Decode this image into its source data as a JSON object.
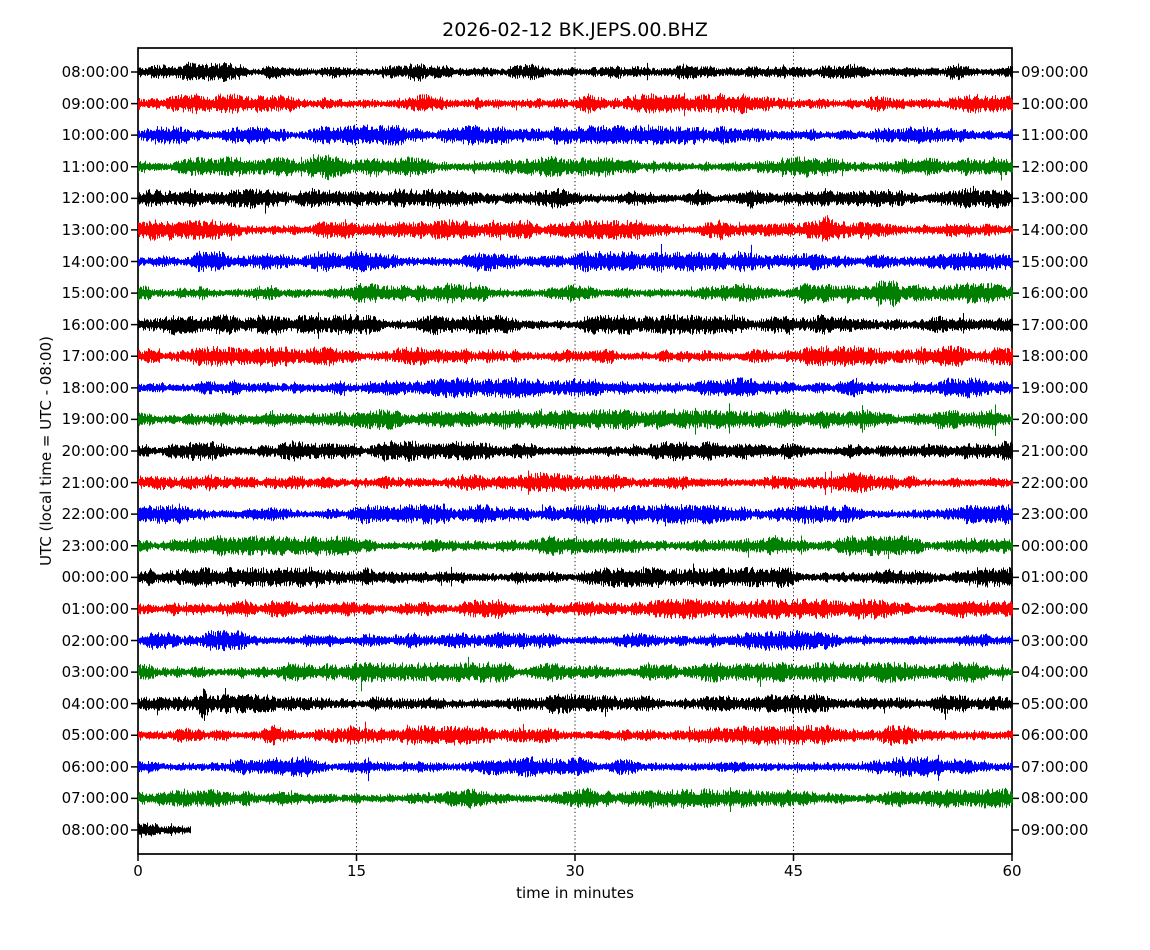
{
  "title": "2026-02-12 BK.JEPS.00.BHZ",
  "xlabel": "time in minutes",
  "ylabel": "UTC (local time = UTC - 08:00)",
  "chart_data": {
    "type": "line",
    "subtype": "seismogram-dayplot",
    "date": "2026-02-12",
    "channel": "BK.JEPS.00.BHZ",
    "x_range_minutes": [
      0,
      60
    ],
    "x_ticks": [
      0,
      15,
      30,
      45,
      60
    ],
    "gridlines_minutes": [
      15,
      30,
      45
    ],
    "grid_style": "dotted-vertical",
    "row_interval_minutes": 60,
    "trace_color_cycle": [
      "#000000",
      "#ff0000",
      "#0000ff",
      "#008000"
    ],
    "frame_color": "#000000",
    "background_color": "#ffffff",
    "rows": [
      {
        "left_label": "08:00:00",
        "right_label": "09:00:00",
        "color": "#000000",
        "duration_min": 60
      },
      {
        "left_label": "09:00:00",
        "right_label": "10:00:00",
        "color": "#ff0000",
        "duration_min": 60
      },
      {
        "left_label": "10:00:00",
        "right_label": "11:00:00",
        "color": "#0000ff",
        "duration_min": 60
      },
      {
        "left_label": "11:00:00",
        "right_label": "12:00:00",
        "color": "#008000",
        "duration_min": 60
      },
      {
        "left_label": "12:00:00",
        "right_label": "13:00:00",
        "color": "#000000",
        "duration_min": 60
      },
      {
        "left_label": "13:00:00",
        "right_label": "14:00:00",
        "color": "#ff0000",
        "duration_min": 60
      },
      {
        "left_label": "14:00:00",
        "right_label": "15:00:00",
        "color": "#0000ff",
        "duration_min": 60
      },
      {
        "left_label": "15:00:00",
        "right_label": "16:00:00",
        "color": "#008000",
        "duration_min": 60
      },
      {
        "left_label": "16:00:00",
        "right_label": "17:00:00",
        "color": "#000000",
        "duration_min": 60
      },
      {
        "left_label": "17:00:00",
        "right_label": "18:00:00",
        "color": "#ff0000",
        "duration_min": 60
      },
      {
        "left_label": "18:00:00",
        "right_label": "19:00:00",
        "color": "#0000ff",
        "duration_min": 60
      },
      {
        "left_label": "19:00:00",
        "right_label": "20:00:00",
        "color": "#008000",
        "duration_min": 60
      },
      {
        "left_label": "20:00:00",
        "right_label": "21:00:00",
        "color": "#000000",
        "duration_min": 60
      },
      {
        "left_label": "21:00:00",
        "right_label": "22:00:00",
        "color": "#ff0000",
        "duration_min": 60
      },
      {
        "left_label": "22:00:00",
        "right_label": "23:00:00",
        "color": "#0000ff",
        "duration_min": 60
      },
      {
        "left_label": "23:00:00",
        "right_label": "00:00:00",
        "color": "#008000",
        "duration_min": 60
      },
      {
        "left_label": "00:00:00",
        "right_label": "01:00:00",
        "color": "#000000",
        "duration_min": 60
      },
      {
        "left_label": "01:00:00",
        "right_label": "02:00:00",
        "color": "#ff0000",
        "duration_min": 60
      },
      {
        "left_label": "02:00:00",
        "right_label": "03:00:00",
        "color": "#0000ff",
        "duration_min": 60
      },
      {
        "left_label": "03:00:00",
        "right_label": "04:00:00",
        "color": "#008000",
        "duration_min": 60
      },
      {
        "left_label": "04:00:00",
        "right_label": "05:00:00",
        "color": "#000000",
        "duration_min": 60
      },
      {
        "left_label": "05:00:00",
        "right_label": "06:00:00",
        "color": "#ff0000",
        "duration_min": 60
      },
      {
        "left_label": "06:00:00",
        "right_label": "07:00:00",
        "color": "#0000ff",
        "duration_min": 60
      },
      {
        "left_label": "07:00:00",
        "right_label": "08:00:00",
        "color": "#008000",
        "duration_min": 60
      },
      {
        "left_label": "08:00:00",
        "right_label": "09:00:00",
        "color": "#000000",
        "duration_min": 3.6
      }
    ],
    "bursts": [
      {
        "row": 3,
        "minute": 12.8,
        "strength": 1.7,
        "width": 0.8
      },
      {
        "row": 5,
        "minute": 47.3,
        "strength": 2.4,
        "width": 0.3
      },
      {
        "row": 7,
        "minute": 51.5,
        "strength": 1.5,
        "width": 0.6
      },
      {
        "row": 20,
        "minute": 4.5,
        "strength": 1.7,
        "width": 0.25
      }
    ]
  }
}
